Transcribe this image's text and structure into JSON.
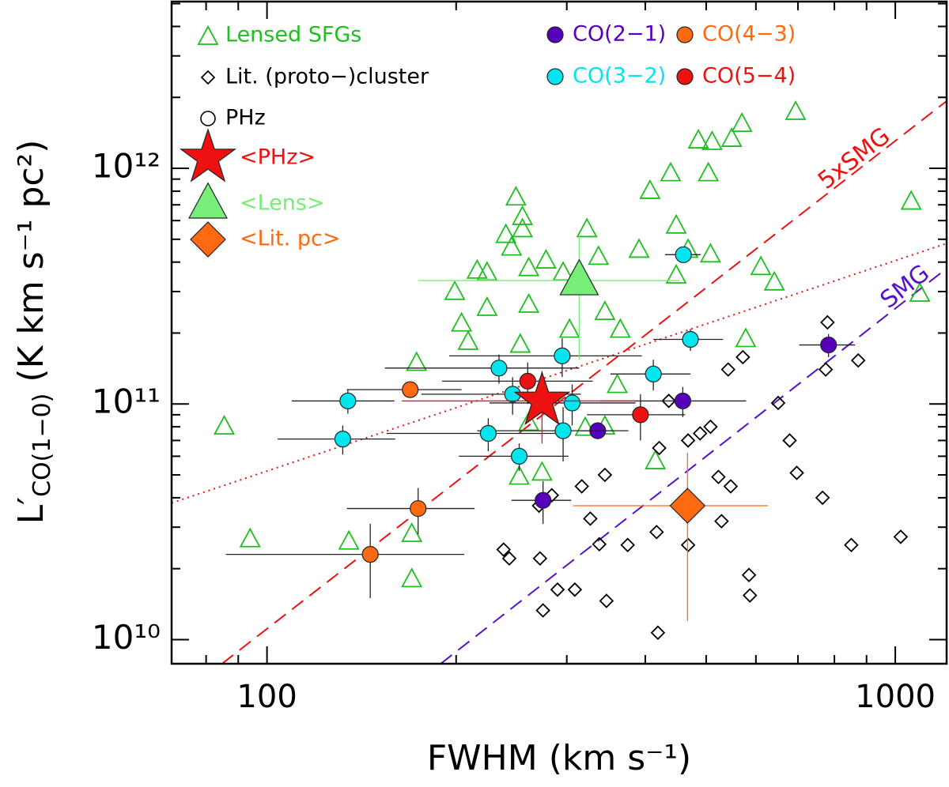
{
  "chart_data": {
    "type": "scatter",
    "xlabel": "FWHM (km s⁻¹)",
    "ylabel": {
      "main": "L′",
      "sub": "CO(1−0)",
      "rest": "(K km s⁻¹ pc²)"
    },
    "xlog": true,
    "ylog": true,
    "xlim": [
      70.5,
      1207
    ],
    "ylim": [
      7900000000.0,
      5100000000000.0
    ],
    "xticks": [
      100,
      1000
    ],
    "xminorticks": [
      80,
      90,
      200,
      300,
      400,
      500,
      600,
      700,
      800,
      900
    ],
    "yticks": [
      {
        "value": 10000000000.0,
        "label": "10¹⁰"
      },
      {
        "value": 100000000000.0,
        "label": "10¹¹"
      },
      {
        "value": 1000000000000.0,
        "label": "10¹²"
      }
    ],
    "yminorticks": [
      20000000000.0,
      30000000000.0,
      40000000000.0,
      50000000000.0,
      60000000000.0,
      70000000000.0,
      80000000000.0,
      90000000000.0,
      200000000000.0,
      300000000000.0,
      400000000000.0,
      500000000000.0,
      600000000000.0,
      700000000000.0,
      800000000000.0,
      900000000000.0,
      2000000000000.0,
      3000000000000.0,
      4000000000000.0,
      5000000000000.0
    ],
    "phz_label": "PHz",
    "lines": [
      {
        "label": "5xSMG",
        "color": "#ee1111",
        "style": "dashed",
        "x": [
          84.8,
          1207
        ],
        "y": [
          7900000000.0,
          1930000000000.0
        ]
      },
      {
        "label": "SMG",
        "color": "#5511cc",
        "style": "dashed",
        "x": [
          189,
          1207
        ],
        "y": [
          7900000000.0,
          376000000000.0
        ]
      },
      {
        "color": "#ee1111",
        "style": "dotted",
        "x": [
          70.5,
          1207
        ],
        "y": [
          38000000000.0,
          480000000000.0
        ]
      }
    ],
    "series": [
      {
        "name": "Lensed SFGs",
        "marker": "triangle",
        "filled": false,
        "color": "#1fbf1f",
        "x": [
          85.5,
          94,
          135,
          170,
          170,
          173,
          199,
          204,
          209,
          216,
          224,
          224,
          240,
          249,
          245,
          255,
          255,
          261,
          261,
          253,
          278,
          296,
          303,
          323,
          337,
          345,
          361,
          365,
          391,
          407,
          415,
          439,
          448,
          448,
          468,
          508,
          486,
          511,
          504,
          549,
          570,
          578,
          611,
          642,
          694,
          1060,
          1094,
          252,
          274,
          321,
          345,
          261
        ],
        "y": [
          80000000000.0,
          26600000000.0,
          26000000000.0,
          18000000000.0,
          28000000000.0,
          149000000000.0,
          298000000000.0,
          219000000000.0,
          183000000000.0,
          367000000000.0,
          255000000000.0,
          360000000000.0,
          520000000000.0,
          750000000000.0,
          460000000000.0,
          620000000000.0,
          550000000000.0,
          263000000000.0,
          376000000000.0,
          178000000000.0,
          405000000000.0,
          360000000000.0,
          206000000000.0,
          550000000000.0,
          420000000000.0,
          245000000000.0,
          120000000000.0,
          206000000000.0,
          450000000000.0,
          800000000000.0,
          57000000000.0,
          950000000000.0,
          570000000000.0,
          350000000000.0,
          450000000000.0,
          430000000000.0,
          1310000000000.0,
          1290000000000.0,
          950000000000.0,
          1330000000000.0,
          1540000000000.0,
          188000000000.0,
          380000000000.0,
          327000000000.0,
          1730000000000.0,
          720000000000.0,
          293000000000.0,
          49000000000.0,
          51000000000.0,
          79000000000.0,
          80000000000.0,
          83000000000.0
        ]
      },
      {
        "name": "Lit. (proto−)cluster",
        "marker": "diamond",
        "filled": false,
        "color": "#000000",
        "x": [
          238,
          243,
          272,
          275,
          271,
          284,
          290,
          309,
          317,
          327,
          338,
          345,
          347,
          375,
          417,
          419,
          421,
          436,
          468,
          468,
          489,
          508,
          523,
          529,
          542,
          547,
          572,
          585,
          587,
          651,
          679,
          697,
          766,
          775,
          780,
          873,
          851,
          1020
        ],
        "y": [
          24100000000.0,
          22100000000.0,
          22100000000.0,
          13300000000.0,
          37000000000.0,
          41000000000.0,
          16300000000.0,
          16300000000.0,
          44700000000.0,
          32600000000.0,
          25400000000.0,
          50000000000.0,
          14600000000.0,
          25200000000.0,
          28600000000.0,
          10700000000.0,
          65000000000.0,
          103000000000.0,
          70000000000.0,
          25200000000.0,
          75000000000.0,
          80000000000.0,
          49000000000.0,
          31800000000.0,
          140000000000.0,
          44700000000.0,
          158000000000.0,
          18800000000.0,
          15400000000.0,
          101000000000.0,
          70000000000.0,
          51000000000.0,
          40000000000.0,
          140000000000.0,
          222000000000.0,
          153000000000.0,
          25200000000.0,
          27300000000.0
        ]
      },
      {
        "name": "CO(2−1)",
        "marker": "circle",
        "filled": true,
        "color": "#5500bb",
        "errorbar_color": "#222222",
        "x": [
          275,
          336,
          459,
          783
        ],
        "y": [
          39000000000.0,
          77000000000.0,
          103000000000.0,
          178000000000.0
        ],
        "xerr": [
          30,
          20,
          120,
          80
        ],
        "yerr": [
          8000000000.0,
          6000000000.0,
          15000000000.0,
          20000000000.0
        ]
      },
      {
        "name": "CO(3−2)",
        "marker": "circle",
        "filled": true,
        "color": "#00e5ee",
        "errorbar_color": "#222222",
        "x": [
          134.5,
          132,
          234,
          225,
          246,
          252,
          295,
          306,
          296,
          412,
          460,
          472
        ],
        "y": [
          103000000000.0,
          71000000000.0,
          142000000000.0,
          75000000000.0,
          110000000000.0,
          60000000000.0,
          160000000000.0,
          101000000000.0,
          77000000000.0,
          134000000000.0,
          430000000000.0,
          188000000000.0
        ],
        "xerr": [
          25,
          28,
          80,
          70,
          70,
          50,
          100,
          80,
          80,
          60,
          30,
          60
        ],
        "yerr": [
          12000000000.0,
          10000000000.0,
          20000000000.0,
          12000000000.0,
          20000000000.0,
          8000000000.0,
          30000000000.0,
          20000000000.0,
          20000000000.0,
          20000000000.0,
          30000000000.0,
          20000000000.0
        ]
      },
      {
        "name": "CO(4−3)",
        "marker": "circle",
        "filled": true,
        "color": "#ff6a10",
        "errorbar_color": "#222222",
        "x": [
          169,
          174,
          146
        ],
        "y": [
          115000000000.0,
          36000000000.0,
          23000000000.0
        ],
        "xerr": [
          35,
          40,
          60
        ],
        "yerr": [
          8000000000.0,
          8000000000.0,
          8000000000.0
        ]
      },
      {
        "name": "CO(5−4)",
        "marker": "circle",
        "filled": true,
        "color": "#ee1111",
        "errorbar_color": "#222222",
        "x": [
          260,
          393
        ],
        "y": [
          125000000000.0,
          90000000000.0
        ],
        "xerr": [
          70,
          70
        ],
        "yerr": [
          25000000000.0,
          20000000000.0
        ]
      },
      {
        "name": "<PHz>",
        "marker": "star",
        "filled": true,
        "color": "#ee1111",
        "errorbar_color": "#ee1111",
        "x": [
          274
        ],
        "y": [
          103000000000.0
        ],
        "xerr": [
          110
        ],
        "yerr": [
          35000000000.0
        ]
      },
      {
        "name": "<Lens>",
        "marker": "bigtriangle",
        "filled": true,
        "color": "#77ee77",
        "errorbar_color": "#77ee77",
        "x": [
          314
        ],
        "y": [
          334000000000.0
        ],
        "xerr": [
          140
        ],
        "yerr": [
          180000000000.0
        ]
      },
      {
        "name": "<Lit. pc>",
        "marker": "bigdiamond",
        "filled": true,
        "color": "#ff6a10",
        "errorbar_color": "#ff6a10",
        "x": [
          467
        ],
        "y": [
          37000000000.0
        ],
        "xerr": [
          160
        ],
        "yerr": [
          25000000000.0
        ]
      }
    ]
  }
}
